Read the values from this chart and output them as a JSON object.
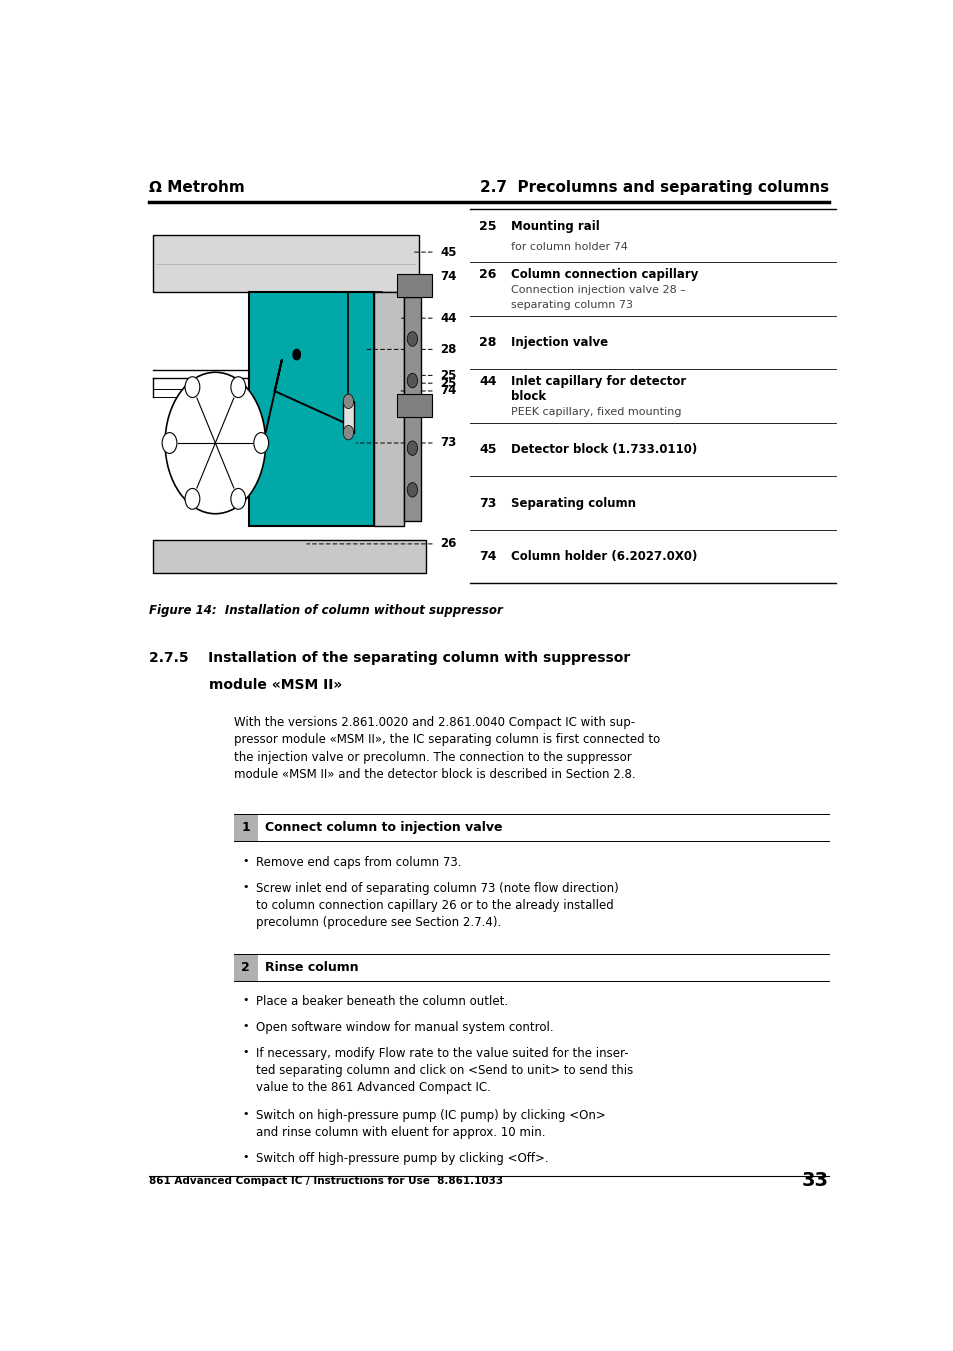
{
  "page_width": 9.54,
  "page_height": 13.51,
  "bg_color": "#ffffff",
  "header_logo_text": "Ω Metrohm",
  "header_right_text": "2.7  Precolumns and separating columns",
  "footer_left_text": "861 Advanced Compact IC / Instructions for Use  8.861.1033",
  "footer_right_text": "33",
  "figure_caption": "Figure 14:  Installation of column without suppressor",
  "section_title_line1": "2.7.5    Installation of the separating column with suppressor",
  "section_title_line2": "module «MSM II»",
  "body_paragraph": "With the versions 2.861.0020 and 2.861.0040 Compact IC with sup-\npressor module «MSM II», the IC separating column is first connected to\nthe injection valve or precolumn. The connection to the suppressor\nmodule «MSM II» and the detector block is described in Section 2.8.",
  "step1_title": "Connect column to injection valve",
  "step1_bullets": [
    "Remove end caps from column 73.",
    "Screw inlet end of separating column 73 (note flow direction)\nto column connection capillary 26 or to the already installed\nprecolumn (procedure see Section 2.7.4)."
  ],
  "step2_title": "Rinse column",
  "step2_bullets": [
    "Place a beaker beneath the column outlet.",
    "Open software window for manual system control.",
    "If necessary, modify Flow rate to the value suited for the inser-\nted separating column and click on <Send to unit> to send this\nvalue to the 861 Advanced Compact IC.",
    "Switch on high-pressure pump (IC pump) by clicking <On>\nand rinse column with eluent for approx. 10 min.",
    "Switch off high-pressure pump by clicking <Off>."
  ],
  "legend_items": [
    {
      "num": "25",
      "title": "Mounting rail",
      "desc": "for column holder 74"
    },
    {
      "num": "26",
      "title": "Column connection capillary",
      "desc": "Connection injection valve 28 –\nseparating column 73"
    },
    {
      "num": "28",
      "title": "Injection valve",
      "desc": ""
    },
    {
      "num": "44",
      "title": "Inlet capillary for detector\nblock",
      "desc": "PEEK capillary, fixed mounting"
    },
    {
      "num": "45",
      "title": "Detector block (1.733.0110)",
      "desc": ""
    },
    {
      "num": "73",
      "title": "Separating column",
      "desc": ""
    },
    {
      "num": "74",
      "title": "Column holder (6.2027.0X0)",
      "desc": ""
    }
  ],
  "teal_color": "#00a8a8",
  "line_color": "#000000",
  "step_bg_color": "#b0b0b0"
}
